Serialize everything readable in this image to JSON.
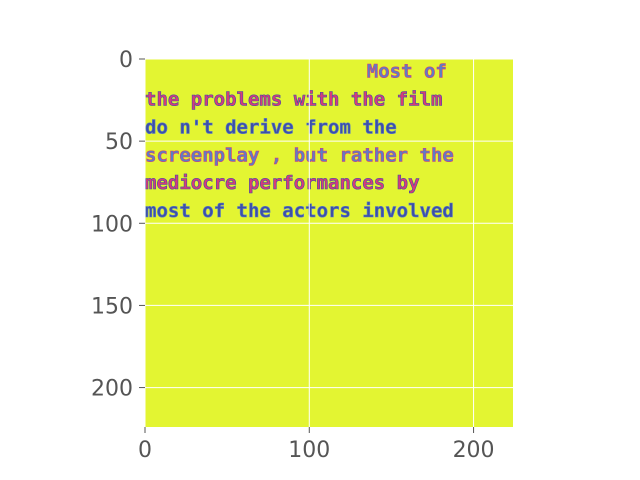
{
  "chart_data": {
    "type": "heatmap",
    "title": "",
    "xlabel": "",
    "ylabel": "",
    "xlim": [
      0,
      224
    ],
    "ylim": [
      224,
      0
    ],
    "x_ticks": [
      0,
      100,
      200
    ],
    "y_ticks": [
      0,
      50,
      100,
      150,
      200
    ],
    "x_tick_labels": [
      "0",
      "100",
      "200"
    ],
    "y_tick_labels": [
      "0",
      "50",
      "100",
      "150",
      "200"
    ],
    "grid": true,
    "background_color": "#e3f532",
    "text_colors": [
      "#5b7fc4",
      "#d83a7a",
      "#3d4fa8"
    ],
    "lines": [
      {
        "text": "Most of",
        "x": 135,
        "y": 7
      },
      {
        "text": "the problems with the film",
        "x": 0,
        "y": 24
      },
      {
        "text": "do n't derive from the",
        "x": 0,
        "y": 41
      },
      {
        "text": "screenplay , but rather the",
        "x": 0,
        "y": 58
      },
      {
        "text": "mediocre performances by",
        "x": 0,
        "y": 75
      },
      {
        "text": "most of the actors involved",
        "x": 0,
        "y": 92
      }
    ]
  }
}
